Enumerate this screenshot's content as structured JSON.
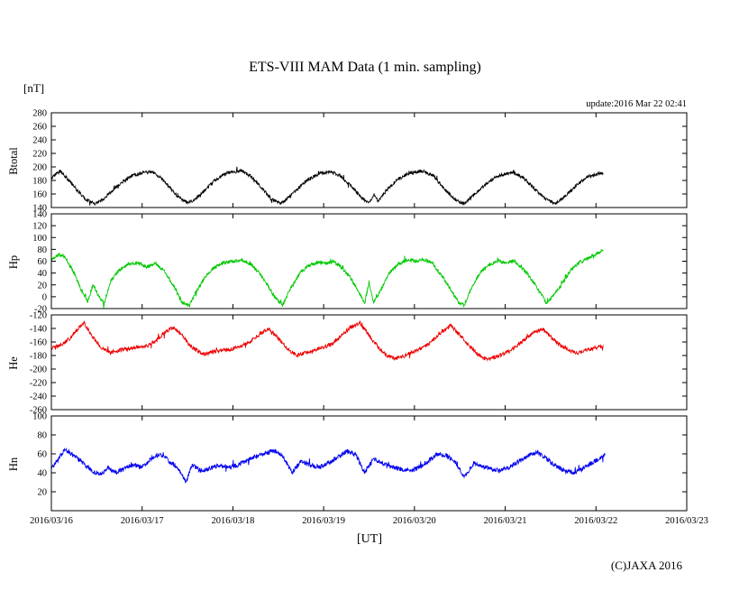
{
  "page": {
    "title": "ETS-VIII MAM Data (1 min. sampling)",
    "unit_label": "[nT]",
    "update_label": "update:2016 Mar 22 02:41",
    "x_axis_label": "[UT]",
    "copyright": "(C)JAXA 2016"
  },
  "chart_data": {
    "type": "line",
    "title": "ETS-VIII MAM Data (1 min. sampling)",
    "xlabel": "[UT]",
    "y_unit": "nT",
    "grid": false,
    "legend": "none (panel labels on left axis)",
    "x_tick_labels": [
      "2016/03/16",
      "2016/03/17",
      "2016/03/18",
      "2016/03/19",
      "2016/03/20",
      "2016/03/21",
      "2016/03/22",
      "2016/03/23"
    ],
    "x_range_days": [
      0,
      7
    ],
    "data_end_note": "data ends shortly after 2016/03/22 00:00 UT",
    "panels": [
      {
        "name": "Btotal",
        "color": "#000000",
        "ylim": [
          140,
          280
        ],
        "yticks": [
          280,
          260,
          240,
          220,
          200,
          180,
          160,
          140
        ],
        "noise": 2.4,
        "points": [
          [
            0,
            183
          ],
          [
            0.05,
            190
          ],
          [
            0.1,
            194
          ],
          [
            0.18,
            182
          ],
          [
            0.28,
            166
          ],
          [
            0.38,
            152
          ],
          [
            0.48,
            146
          ],
          [
            0.55,
            150
          ],
          [
            0.65,
            162
          ],
          [
            0.78,
            178
          ],
          [
            0.9,
            188
          ],
          [
            1,
            191
          ],
          [
            1.1,
            193
          ],
          [
            1.2,
            185
          ],
          [
            1.3,
            170
          ],
          [
            1.4,
            155
          ],
          [
            1.5,
            147
          ],
          [
            1.58,
            151
          ],
          [
            1.68,
            164
          ],
          [
            1.8,
            180
          ],
          [
            1.92,
            190
          ],
          [
            2,
            193
          ],
          [
            2.1,
            194
          ],
          [
            2.2,
            186
          ],
          [
            2.3,
            171
          ],
          [
            2.42,
            153
          ],
          [
            2.52,
            146
          ],
          [
            2.6,
            153
          ],
          [
            2.7,
            166
          ],
          [
            2.82,
            181
          ],
          [
            2.95,
            190
          ],
          [
            3.08,
            193
          ],
          [
            3.18,
            187
          ],
          [
            3.3,
            172
          ],
          [
            3.42,
            154
          ],
          [
            3.5,
            148
          ],
          [
            3.55,
            158
          ],
          [
            3.6,
            150
          ],
          [
            3.7,
            167
          ],
          [
            3.82,
            182
          ],
          [
            3.95,
            191
          ],
          [
            4.1,
            194
          ],
          [
            4.22,
            185
          ],
          [
            4.32,
            169
          ],
          [
            4.45,
            151
          ],
          [
            4.55,
            146
          ],
          [
            4.65,
            158
          ],
          [
            4.75,
            170
          ],
          [
            4.88,
            184
          ],
          [
            5,
            190
          ],
          [
            5.08,
            192
          ],
          [
            5.2,
            184
          ],
          [
            5.32,
            168
          ],
          [
            5.45,
            152
          ],
          [
            5.55,
            145
          ],
          [
            5.65,
            156
          ],
          [
            5.78,
            172
          ],
          [
            5.9,
            185
          ],
          [
            6,
            189
          ],
          [
            6.08,
            191
          ]
        ]
      },
      {
        "name": "Hp",
        "color": "#00c800",
        "ylim": [
          -20,
          140
        ],
        "yticks": [
          140,
          120,
          100,
          80,
          60,
          40,
          20,
          0,
          -20
        ],
        "noise": 3.0,
        "points": [
          [
            0,
            62
          ],
          [
            0.08,
            72
          ],
          [
            0.15,
            68
          ],
          [
            0.25,
            40
          ],
          [
            0.33,
            12
          ],
          [
            0.4,
            -8
          ],
          [
            0.46,
            20
          ],
          [
            0.52,
            2
          ],
          [
            0.58,
            -12
          ],
          [
            0.66,
            28
          ],
          [
            0.75,
            45
          ],
          [
            0.85,
            55
          ],
          [
            0.95,
            58
          ],
          [
            1.05,
            50
          ],
          [
            1.15,
            56
          ],
          [
            1.25,
            42
          ],
          [
            1.35,
            18
          ],
          [
            1.44,
            -10
          ],
          [
            1.52,
            -15
          ],
          [
            1.6,
            10
          ],
          [
            1.7,
            35
          ],
          [
            1.8,
            50
          ],
          [
            1.9,
            58
          ],
          [
            2,
            60
          ],
          [
            2.1,
            62
          ],
          [
            2.2,
            55
          ],
          [
            2.3,
            38
          ],
          [
            2.4,
            15
          ],
          [
            2.48,
            -5
          ],
          [
            2.55,
            -14
          ],
          [
            2.63,
            12
          ],
          [
            2.73,
            38
          ],
          [
            2.83,
            52
          ],
          [
            2.93,
            58
          ],
          [
            3.02,
            57
          ],
          [
            3.1,
            60
          ],
          [
            3.18,
            52
          ],
          [
            3.28,
            35
          ],
          [
            3.38,
            10
          ],
          [
            3.45,
            -12
          ],
          [
            3.5,
            25
          ],
          [
            3.55,
            -10
          ],
          [
            3.62,
            8
          ],
          [
            3.72,
            40
          ],
          [
            3.82,
            55
          ],
          [
            3.92,
            62
          ],
          [
            4.02,
            60
          ],
          [
            4.1,
            63
          ],
          [
            4.2,
            56
          ],
          [
            4.3,
            36
          ],
          [
            4.4,
            12
          ],
          [
            4.48,
            -8
          ],
          [
            4.55,
            -14
          ],
          [
            4.63,
            15
          ],
          [
            4.73,
            42
          ],
          [
            4.83,
            55
          ],
          [
            4.93,
            60
          ],
          [
            5.02,
            58
          ],
          [
            5.1,
            60
          ],
          [
            5.18,
            50
          ],
          [
            5.28,
            32
          ],
          [
            5.38,
            8
          ],
          [
            5.46,
            -12
          ],
          [
            5.54,
            5
          ],
          [
            5.62,
            20
          ],
          [
            5.72,
            45
          ],
          [
            5.82,
            58
          ],
          [
            5.92,
            65
          ],
          [
            6,
            72
          ],
          [
            6.08,
            80
          ]
        ]
      },
      {
        "name": "He",
        "color": "#ee0000",
        "ylim": [
          -260,
          -120
        ],
        "yticks": [
          -120,
          -140,
          -160,
          -180,
          -200,
          -220,
          -240,
          -260
        ],
        "noise": 2.8,
        "points": [
          [
            0,
            -170
          ],
          [
            0.1,
            -165
          ],
          [
            0.2,
            -155
          ],
          [
            0.3,
            -140
          ],
          [
            0.36,
            -132
          ],
          [
            0.45,
            -152
          ],
          [
            0.55,
            -168
          ],
          [
            0.65,
            -175
          ],
          [
            0.75,
            -172
          ],
          [
            0.85,
            -170
          ],
          [
            0.95,
            -168
          ],
          [
            1.05,
            -166
          ],
          [
            1.15,
            -158
          ],
          [
            1.25,
            -146
          ],
          [
            1.35,
            -138
          ],
          [
            1.45,
            -152
          ],
          [
            1.55,
            -168
          ],
          [
            1.68,
            -178
          ],
          [
            1.78,
            -175
          ],
          [
            1.9,
            -172
          ],
          [
            2,
            -170
          ],
          [
            2.1,
            -166
          ],
          [
            2.2,
            -158
          ],
          [
            2.3,
            -148
          ],
          [
            2.4,
            -140
          ],
          [
            2.5,
            -155
          ],
          [
            2.6,
            -170
          ],
          [
            2.7,
            -180
          ],
          [
            2.8,
            -176
          ],
          [
            2.9,
            -172
          ],
          [
            3,
            -168
          ],
          [
            3.1,
            -162
          ],
          [
            3.2,
            -150
          ],
          [
            3.3,
            -138
          ],
          [
            3.4,
            -132
          ],
          [
            3.5,
            -150
          ],
          [
            3.6,
            -168
          ],
          [
            3.7,
            -180
          ],
          [
            3.8,
            -185
          ],
          [
            3.9,
            -180
          ],
          [
            4,
            -174
          ],
          [
            4.1,
            -168
          ],
          [
            4.2,
            -158
          ],
          [
            4.3,
            -145
          ],
          [
            4.4,
            -135
          ],
          [
            4.5,
            -150
          ],
          [
            4.6,
            -165
          ],
          [
            4.7,
            -178
          ],
          [
            4.8,
            -186
          ],
          [
            4.9,
            -182
          ],
          [
            5,
            -176
          ],
          [
            5.1,
            -168
          ],
          [
            5.2,
            -158
          ],
          [
            5.3,
            -148
          ],
          [
            5.4,
            -140
          ],
          [
            5.5,
            -152
          ],
          [
            5.6,
            -164
          ],
          [
            5.7,
            -172
          ],
          [
            5.8,
            -176
          ],
          [
            5.9,
            -172
          ],
          [
            6,
            -168
          ],
          [
            6.08,
            -166
          ]
        ]
      },
      {
        "name": "Hn",
        "color": "#0000ee",
        "ylim": [
          0,
          100
        ],
        "yticks": [
          100,
          80,
          60,
          40,
          20
        ],
        "noise": 2.4,
        "points": [
          [
            0,
            44
          ],
          [
            0.08,
            55
          ],
          [
            0.15,
            65
          ],
          [
            0.25,
            58
          ],
          [
            0.35,
            50
          ],
          [
            0.45,
            42
          ],
          [
            0.55,
            38
          ],
          [
            0.62,
            46
          ],
          [
            0.7,
            40
          ],
          [
            0.8,
            44
          ],
          [
            0.9,
            48
          ],
          [
            1,
            46
          ],
          [
            1.1,
            55
          ],
          [
            1.2,
            60
          ],
          [
            1.3,
            52
          ],
          [
            1.4,
            45
          ],
          [
            1.48,
            30
          ],
          [
            1.55,
            48
          ],
          [
            1.65,
            42
          ],
          [
            1.75,
            45
          ],
          [
            1.85,
            48
          ],
          [
            1.95,
            46
          ],
          [
            2.05,
            48
          ],
          [
            2.15,
            53
          ],
          [
            2.25,
            57
          ],
          [
            2.35,
            60
          ],
          [
            2.45,
            64
          ],
          [
            2.55,
            58
          ],
          [
            2.65,
            40
          ],
          [
            2.75,
            52
          ],
          [
            2.85,
            48
          ],
          [
            2.95,
            46
          ],
          [
            3.05,
            50
          ],
          [
            3.15,
            56
          ],
          [
            3.25,
            63
          ],
          [
            3.35,
            60
          ],
          [
            3.45,
            40
          ],
          [
            3.55,
            55
          ],
          [
            3.65,
            50
          ],
          [
            3.75,
            46
          ],
          [
            3.85,
            44
          ],
          [
            3.95,
            42
          ],
          [
            4.05,
            46
          ],
          [
            4.15,
            52
          ],
          [
            4.25,
            60
          ],
          [
            4.35,
            58
          ],
          [
            4.45,
            52
          ],
          [
            4.55,
            35
          ],
          [
            4.65,
            50
          ],
          [
            4.75,
            46
          ],
          [
            4.85,
            44
          ],
          [
            4.95,
            42
          ],
          [
            5.05,
            46
          ],
          [
            5.15,
            52
          ],
          [
            5.25,
            58
          ],
          [
            5.35,
            62
          ],
          [
            5.45,
            55
          ],
          [
            5.55,
            48
          ],
          [
            5.65,
            42
          ],
          [
            5.75,
            40
          ],
          [
            5.85,
            44
          ],
          [
            5.95,
            50
          ],
          [
            6.05,
            56
          ],
          [
            6.1,
            60
          ]
        ]
      }
    ]
  }
}
